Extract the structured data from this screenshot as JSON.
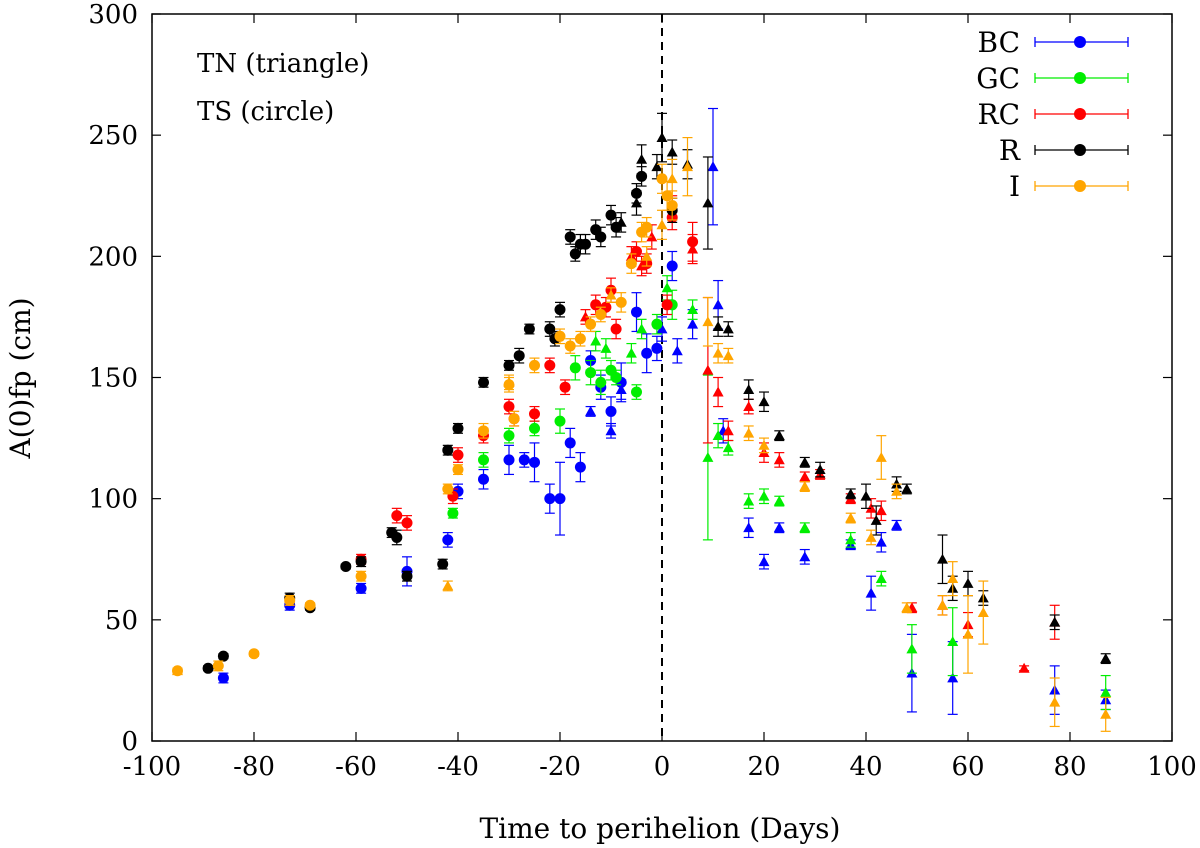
{
  "chart_data": {
    "type": "scatter",
    "xlabel": "Time to perihelion (Days)",
    "ylabel": "A(0)fp (cm)",
    "xlim": [
      -100,
      100
    ],
    "ylim": [
      0,
      300
    ],
    "xticks": [
      -100,
      -80,
      -60,
      -40,
      -20,
      0,
      20,
      40,
      60,
      80,
      100
    ],
    "yticks": [
      0,
      50,
      100,
      150,
      200,
      250,
      300
    ],
    "grid": false,
    "legend_position": "top-right",
    "annotations": [
      "TN (triangle)",
      "TS (circle)"
    ],
    "reference_line": {
      "x": 0,
      "style": "dashed"
    },
    "series": [
      {
        "name": "BC",
        "color": "#0000ff",
        "circle": [
          [
            -86,
            26,
            2
          ],
          [
            -73,
            56,
            2
          ],
          [
            -59,
            63,
            2
          ],
          [
            -50,
            70,
            6
          ],
          [
            -42,
            83,
            3
          ],
          [
            -40,
            103,
            3
          ],
          [
            -35,
            108,
            4
          ],
          [
            -30,
            116,
            6
          ],
          [
            -27,
            116,
            3
          ],
          [
            -25,
            115,
            8
          ],
          [
            -22,
            100,
            6
          ],
          [
            -20,
            100,
            15
          ],
          [
            -18,
            123,
            6
          ],
          [
            -16,
            113,
            6
          ],
          [
            -14,
            157,
            4
          ],
          [
            -12,
            146,
            5
          ],
          [
            -10,
            136,
            6
          ],
          [
            -8,
            148,
            8
          ],
          [
            -5,
            177,
            8
          ],
          [
            -3,
            160,
            8
          ],
          [
            -1,
            162,
            5
          ],
          [
            2,
            196,
            6
          ]
        ],
        "triangle": [
          [
            -14,
            136,
            2
          ],
          [
            -10,
            128,
            3
          ],
          [
            -8,
            145,
            4
          ],
          [
            0,
            170,
            5
          ],
          [
            3,
            161,
            5
          ],
          [
            6,
            172,
            6
          ],
          [
            10,
            237,
            24
          ],
          [
            11,
            180,
            10
          ],
          [
            12,
            128,
            5
          ],
          [
            17,
            88,
            4
          ],
          [
            20,
            74,
            3
          ],
          [
            23,
            88,
            2
          ],
          [
            28,
            76,
            3
          ],
          [
            37,
            81,
            2
          ],
          [
            41,
            61,
            7
          ],
          [
            43,
            82,
            4
          ],
          [
            46,
            89,
            2
          ],
          [
            49,
            28,
            16
          ],
          [
            57,
            26,
            15
          ],
          [
            77,
            21,
            10
          ],
          [
            87,
            17,
            4
          ]
        ]
      },
      {
        "name": "GC",
        "color": "#00ee00",
        "circle": [
          [
            -41,
            94,
            2
          ],
          [
            -35,
            116,
            3
          ],
          [
            -30,
            126,
            3
          ],
          [
            -25,
            129,
            3
          ],
          [
            -20,
            132,
            5
          ],
          [
            -17,
            154,
            5
          ],
          [
            -14,
            152,
            5
          ],
          [
            -12,
            148,
            5
          ],
          [
            -10,
            153,
            4
          ],
          [
            -9,
            150,
            3
          ],
          [
            -5,
            144,
            3
          ],
          [
            -1,
            172,
            4
          ],
          [
            2,
            180,
            6
          ]
        ],
        "triangle": [
          [
            -13,
            165,
            4
          ],
          [
            -11,
            162,
            4
          ],
          [
            -6,
            160,
            4
          ],
          [
            -4,
            170,
            4
          ],
          [
            1,
            187,
            5
          ],
          [
            6,
            178,
            4
          ],
          [
            9,
            117,
            34
          ],
          [
            11,
            126,
            5
          ],
          [
            13,
            121,
            3
          ],
          [
            17,
            99,
            3
          ],
          [
            20,
            101,
            3
          ],
          [
            23,
            99,
            2
          ],
          [
            28,
            88,
            2
          ],
          [
            37,
            83,
            3
          ],
          [
            43,
            67,
            3
          ],
          [
            49,
            38,
            10
          ],
          [
            57,
            41,
            14
          ],
          [
            87,
            20,
            7
          ]
        ]
      },
      {
        "name": "RC",
        "color": "#ff0000",
        "circle": [
          [
            -59,
            75,
            2
          ],
          [
            -52,
            93,
            3
          ],
          [
            -50,
            90,
            3
          ],
          [
            -41,
            101,
            3
          ],
          [
            -40,
            118,
            3
          ],
          [
            -35,
            126,
            3
          ],
          [
            -30,
            138,
            3
          ],
          [
            -29,
            133,
            3
          ],
          [
            -25,
            135,
            3
          ],
          [
            -22,
            155,
            3
          ],
          [
            -19,
            146,
            3
          ],
          [
            -13,
            180,
            4
          ],
          [
            -11,
            179,
            4
          ],
          [
            -10,
            186,
            5
          ],
          [
            -9,
            170,
            4
          ],
          [
            -5,
            202,
            4
          ],
          [
            -3,
            197,
            4
          ],
          [
            1,
            180,
            4
          ],
          [
            2,
            216,
            5
          ],
          [
            6,
            206,
            8
          ]
        ],
        "triangle": [
          [
            -15,
            175,
            3
          ],
          [
            -6,
            200,
            4
          ],
          [
            -4,
            196,
            4
          ],
          [
            -2,
            208,
            5
          ],
          [
            2,
            220,
            5
          ],
          [
            6,
            203,
            6
          ],
          [
            9,
            153,
            30
          ],
          [
            11,
            144,
            6
          ],
          [
            13,
            128,
            4
          ],
          [
            17,
            138,
            3
          ],
          [
            20,
            119,
            4
          ],
          [
            23,
            116,
            3
          ],
          [
            28,
            109,
            2
          ],
          [
            31,
            110,
            2
          ],
          [
            37,
            100,
            2
          ],
          [
            41,
            96,
            4
          ],
          [
            43,
            95,
            4
          ],
          [
            49,
            55,
            2
          ],
          [
            55,
            56,
            4
          ],
          [
            60,
            48,
            5
          ],
          [
            71,
            30,
            1
          ],
          [
            77,
            49,
            7
          ]
        ]
      },
      {
        "name": "R",
        "color": "#000000",
        "circle": [
          [
            -89,
            30,
            1
          ],
          [
            -86,
            35,
            1
          ],
          [
            -73,
            59,
            2
          ],
          [
            -69,
            55,
            1
          ],
          [
            -62,
            72,
            1
          ],
          [
            -59,
            74,
            2
          ],
          [
            -53,
            86,
            2
          ],
          [
            -52,
            84,
            3
          ],
          [
            -50,
            68,
            2
          ],
          [
            -43,
            73,
            2
          ],
          [
            -42,
            120,
            2
          ],
          [
            -35,
            148,
            2
          ],
          [
            -40,
            129,
            2
          ],
          [
            -30,
            155,
            2
          ],
          [
            -28,
            159,
            3
          ],
          [
            -26,
            170,
            2
          ],
          [
            -22,
            170,
            3
          ],
          [
            -21,
            166,
            3
          ],
          [
            -20,
            178,
            3
          ],
          [
            -18,
            208,
            3
          ],
          [
            -17,
            201,
            3
          ],
          [
            -16,
            205,
            4
          ],
          [
            -15,
            205,
            4
          ],
          [
            -13,
            211,
            4
          ],
          [
            -12,
            208,
            4
          ],
          [
            -10,
            217,
            4
          ],
          [
            -9,
            212,
            4
          ],
          [
            -5,
            226,
            4
          ],
          [
            -4,
            233,
            4
          ],
          [
            2,
            219,
            5
          ]
        ],
        "triangle": [
          [
            -8,
            214,
            4
          ],
          [
            -5,
            222,
            5
          ],
          [
            -4,
            240,
            6
          ],
          [
            -1,
            237,
            5
          ],
          [
            0,
            249,
            10
          ],
          [
            2,
            243,
            5
          ],
          [
            5,
            238,
            6
          ],
          [
            9,
            222,
            19
          ],
          [
            11,
            171,
            4
          ],
          [
            13,
            170,
            3
          ],
          [
            17,
            145,
            4
          ],
          [
            20,
            140,
            4
          ],
          [
            23,
            126,
            2
          ],
          [
            28,
            115,
            2
          ],
          [
            31,
            112,
            3
          ],
          [
            37,
            102,
            2
          ],
          [
            40,
            101,
            5
          ],
          [
            42,
            91,
            6
          ],
          [
            46,
            106,
            3
          ],
          [
            48,
            104,
            2
          ],
          [
            55,
            75,
            10
          ],
          [
            57,
            63,
            5
          ],
          [
            60,
            65,
            5
          ],
          [
            63,
            59,
            3
          ],
          [
            77,
            49,
            3
          ],
          [
            87,
            34,
            2
          ]
        ]
      },
      {
        "name": "I",
        "color": "#ffa500",
        "circle": [
          [
            -95,
            29,
            1
          ],
          [
            -87,
            31,
            2
          ],
          [
            -80,
            36,
            1
          ],
          [
            -73,
            58,
            2
          ],
          [
            -69,
            56,
            1
          ],
          [
            -59,
            68,
            2
          ],
          [
            -42,
            104,
            2
          ],
          [
            -40,
            112,
            2
          ],
          [
            -35,
            128,
            3
          ],
          [
            -30,
            147,
            3
          ],
          [
            -29,
            133,
            3
          ],
          [
            -25,
            155,
            3
          ],
          [
            -20,
            167,
            3
          ],
          [
            -18,
            163,
            3
          ],
          [
            -16,
            166,
            3
          ],
          [
            -14,
            172,
            3
          ],
          [
            -12,
            176,
            3
          ],
          [
            -8,
            181,
            4
          ],
          [
            -6,
            197,
            4
          ],
          [
            -4,
            210,
            4
          ],
          [
            -3,
            212,
            4
          ],
          [
            0,
            232,
            6
          ],
          [
            1,
            225,
            6
          ],
          [
            2,
            221,
            6
          ]
        ],
        "triangle": [
          [
            -95,
            29,
            1
          ],
          [
            -42,
            64,
            2
          ],
          [
            -30,
            148,
            3
          ],
          [
            -10,
            184,
            3
          ],
          [
            -3,
            200,
            4
          ],
          [
            0,
            213,
            6
          ],
          [
            2,
            232,
            8
          ],
          [
            5,
            237,
            12
          ],
          [
            9,
            173,
            10
          ],
          [
            11,
            160,
            4
          ],
          [
            13,
            159,
            3
          ],
          [
            17,
            127,
            3
          ],
          [
            20,
            122,
            3
          ],
          [
            28,
            105,
            2
          ],
          [
            37,
            92,
            2
          ],
          [
            41,
            84,
            3
          ],
          [
            43,
            117,
            9
          ],
          [
            46,
            103,
            3
          ],
          [
            48,
            55,
            2
          ],
          [
            55,
            56,
            4
          ],
          [
            57,
            67,
            7
          ],
          [
            60,
            44,
            16
          ],
          [
            63,
            53,
            13
          ],
          [
            77,
            16,
            10
          ],
          [
            87,
            11,
            7
          ]
        ]
      }
    ]
  }
}
